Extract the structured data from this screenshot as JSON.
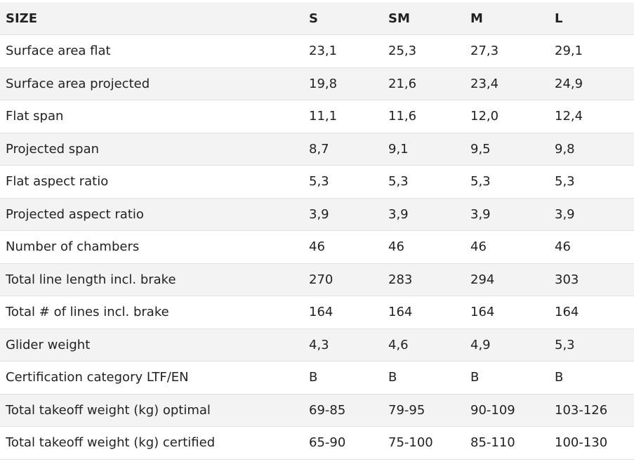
{
  "table": {
    "header": [
      "SIZE",
      "S",
      "SM",
      "M",
      "L"
    ],
    "rows": [
      [
        "Surface area flat",
        "23,1",
        "25,3",
        "27,3",
        "29,1"
      ],
      [
        "Surface area projected",
        "19,8",
        "21,6",
        "23,4",
        "24,9"
      ],
      [
        "Flat span",
        "11,1",
        "11,6",
        "12,0",
        "12,4"
      ],
      [
        "Projected span",
        "8,7",
        "9,1",
        "9,5",
        "9,8"
      ],
      [
        "Flat aspect ratio",
        "5,3",
        "5,3",
        "5,3",
        "5,3"
      ],
      [
        "Projected aspect ratio",
        "3,9",
        "3,9",
        "3,9",
        "3,9"
      ],
      [
        "Number of chambers",
        "46",
        "46",
        "46",
        "46"
      ],
      [
        "Total line length incl. brake",
        "270",
        "283",
        "294",
        "303"
      ],
      [
        "Total # of lines incl. brake",
        "164",
        "164",
        "164",
        "164"
      ],
      [
        "Glider weight",
        "4,3",
        "4,6",
        "4,9",
        "5,3"
      ],
      [
        "Certification category LTF/EN",
        "B",
        "B",
        "B",
        "B"
      ],
      [
        "Total takeoff weight (kg) optimal",
        "69-85",
        "79-95",
        "90-109",
        "103-126"
      ],
      [
        "Total takeoff weight (kg) certified",
        "65-90",
        "75-100",
        "85-110",
        "100-130"
      ]
    ]
  }
}
